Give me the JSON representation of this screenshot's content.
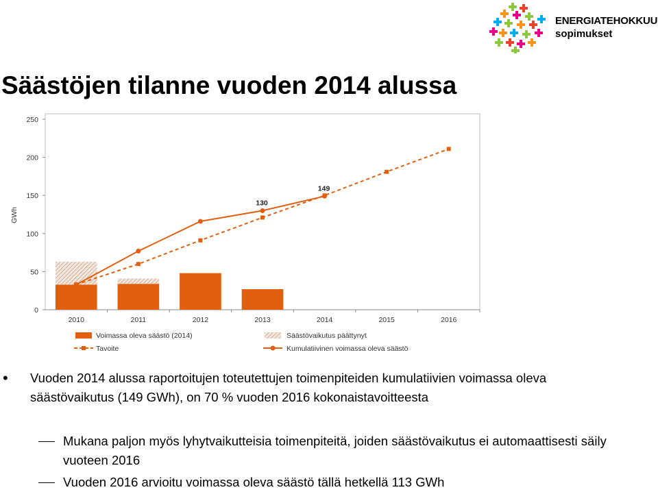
{
  "slide": {
    "title": "Säästöjen tilanne vuoden 2014 alussa"
  },
  "logo": {
    "line1": "ENERGIATEHOKKUUS-",
    "line2": "sopimukset"
  },
  "chart_data": {
    "type": "bar+line",
    "ylabel": "GWh",
    "ylim": [
      0,
      250
    ],
    "yticks": [
      0,
      50,
      100,
      150,
      200,
      250
    ],
    "categories": [
      "2010",
      "2011",
      "2012",
      "2013",
      "2014",
      "2015",
      "2016"
    ],
    "grid": false,
    "legend_position": "bottom",
    "colors": {
      "orange": "#e0600f",
      "hatch_line": "#c9a58a"
    },
    "bars": [
      {
        "name": "Voimassa oleva säästö (2014)",
        "values": [
          33,
          34,
          48,
          27,
          null,
          null,
          null
        ]
      },
      {
        "name": "Säästövaikutus päättynyt",
        "values": [
          30,
          7,
          0,
          0,
          null,
          null,
          null
        ]
      }
    ],
    "lines": [
      {
        "name": "Tavoite",
        "style": "dashed",
        "marker": "square",
        "values": [
          33,
          60,
          91,
          121,
          150,
          181,
          211
        ]
      },
      {
        "name": "Kumulatiivinen voimassa oleva säästö",
        "style": "solid",
        "marker": "circle",
        "values": [
          33,
          77,
          116,
          130,
          149,
          null,
          null
        ]
      }
    ],
    "data_labels": [
      {
        "category": "2013",
        "value": "130"
      },
      {
        "category": "2014",
        "value": "149"
      }
    ]
  },
  "bullets": {
    "main": "Vuoden 2014 alussa raportoitujen toteutettujen toimenpiteiden kumulatiivien voimassa oleva säästövaikutus (149 GWh), on 70 % vuoden 2016 kokonaistavoitteesta",
    "sub1": "Mukana paljon myös lyhytvaikutteisia toimenpiteitä, joiden säästövaikutus ei automaattisesti säily vuoteen 2016",
    "sub2": "Vuoden 2016 arvioitu voimassa oleva säästö tällä hetkellä 113 GWh"
  }
}
